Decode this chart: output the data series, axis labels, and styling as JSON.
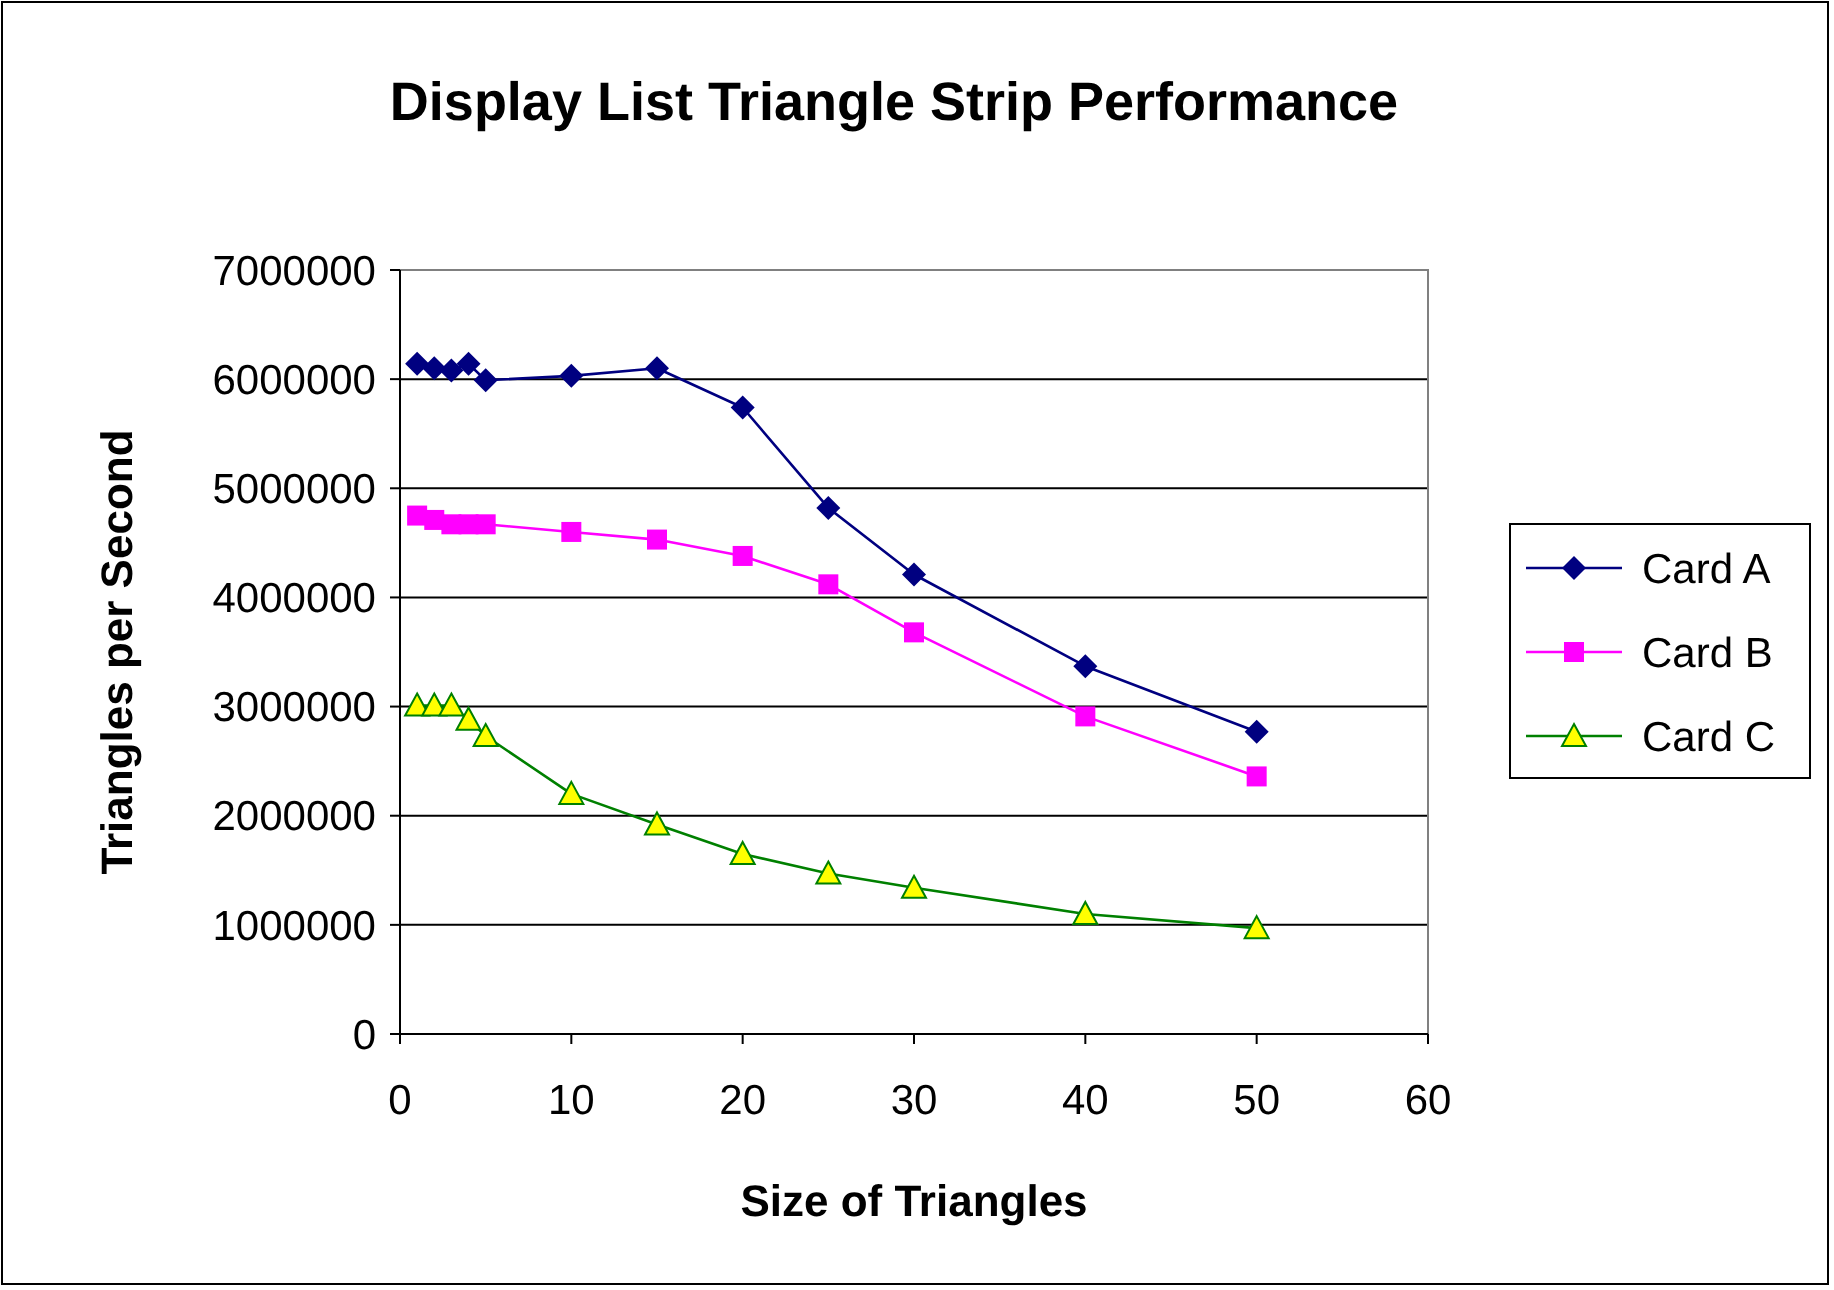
{
  "chart_data": {
    "type": "line",
    "title": "Display List Triangle Strip Performance",
    "xlabel": "Size of Triangles",
    "ylabel": "Triangles per Second",
    "x": [
      1,
      2,
      3,
      4,
      5,
      10,
      15,
      20,
      25,
      30,
      40,
      50
    ],
    "xlim": [
      0,
      60
    ],
    "xticks": [
      0,
      10,
      20,
      30,
      40,
      50,
      60
    ],
    "ylim": [
      0,
      7000000
    ],
    "yticks": [
      0,
      1000000,
      2000000,
      3000000,
      4000000,
      5000000,
      6000000,
      7000000
    ],
    "grid": "y",
    "legend": "right",
    "series": [
      {
        "name": "Card A",
        "color": "#000080",
        "marker": "diamond",
        "values": [
          6140000,
          6100000,
          6080000,
          6140000,
          5990000,
          6030000,
          6100000,
          5740000,
          4820000,
          4210000,
          3370000,
          2770000
        ]
      },
      {
        "name": "Card B",
        "color": "#ff00ff",
        "marker": "square",
        "values": [
          4750000,
          4710000,
          4670000,
          4670000,
          4670000,
          4600000,
          4530000,
          4380000,
          4120000,
          3680000,
          2910000,
          2360000
        ]
      },
      {
        "name": "Card C",
        "color": "#008000",
        "marker": "triangle",
        "values": [
          3010000,
          3010000,
          3010000,
          2880000,
          2730000,
          2200000,
          1920000,
          1650000,
          1470000,
          1340000,
          1100000,
          970000
        ]
      }
    ]
  }
}
